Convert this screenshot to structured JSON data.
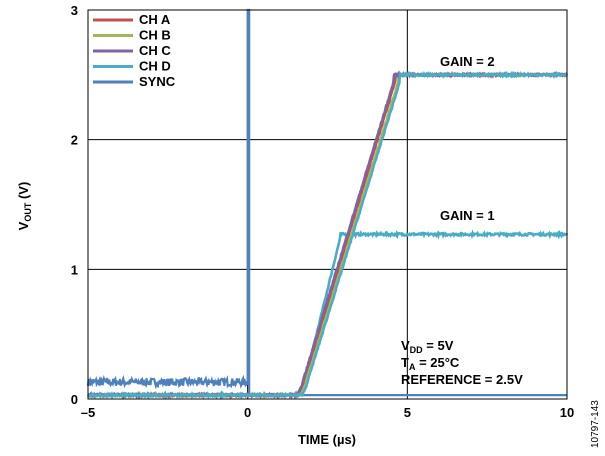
{
  "chart_data": {
    "type": "line",
    "xlabel": "TIME (µs)",
    "ylabel_main": "V",
    "ylabel_sub": "OUT",
    "ylabel_unit": " (V)",
    "xlim": [
      -5,
      10
    ],
    "ylim": [
      0,
      3
    ],
    "x_ticks": [
      {
        "value": -5,
        "label": "–5"
      },
      {
        "value": 0,
        "label": "0"
      },
      {
        "value": 5,
        "label": "5"
      },
      {
        "value": 10,
        "label": "10"
      }
    ],
    "y_ticks": [
      {
        "value": 0,
        "label": "0"
      },
      {
        "value": 1,
        "label": "1"
      },
      {
        "value": 2,
        "label": "2"
      },
      {
        "value": 3,
        "label": "3"
      }
    ],
    "grid": true,
    "legend_placement": "top-left",
    "series": [
      {
        "name": "CH A",
        "color": "#c0504d",
        "gain": 2,
        "rise_start": 1.55,
        "rise_end": 4.75,
        "final": 2.5
      },
      {
        "name": "CH B",
        "color": "#9bbb59",
        "gain": 2,
        "rise_start": 1.6,
        "rise_end": 4.85,
        "final": 2.5
      },
      {
        "name": "CH C",
        "color": "#8064a2",
        "gain": 2,
        "rise_start": 1.5,
        "rise_end": 4.7,
        "final": 2.5
      },
      {
        "name": "CH D",
        "color": "#4bacc6",
        "gain": 2,
        "rise_start": 1.65,
        "rise_end": 4.9,
        "final": 2.5
      },
      {
        "name": "SYNC",
        "color": "#4f81bd",
        "type": "sync",
        "low": 0.13,
        "high": 3.0,
        "edge": 0
      }
    ],
    "gain1_trace": {
      "color": "#4bacc6",
      "rise_start": 1.65,
      "rise_end": 2.95,
      "final": 1.27
    },
    "baseline": 0.03,
    "annotations": {
      "gain2": "GAIN = 2",
      "gain1": "GAIN = 1",
      "vdd_main": "V",
      "vdd_sub": "DD",
      "vdd_value": " = 5V",
      "ta_main": "T",
      "ta_sub": "A",
      "ta_value": " = 25°C",
      "reference": "REFERENCE = 2.5V"
    },
    "figure_id": "10797-143"
  }
}
